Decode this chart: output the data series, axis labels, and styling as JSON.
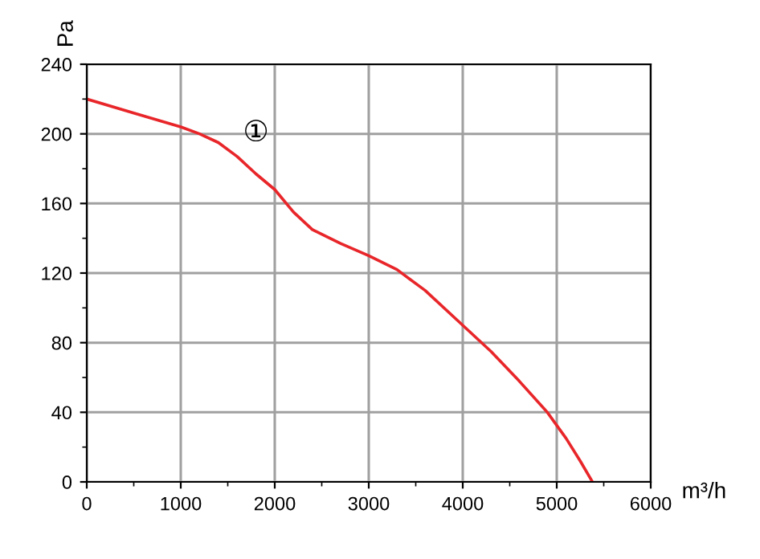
{
  "chart_data": {
    "type": "line",
    "xlabel": "m³/h",
    "ylabel": "Pa",
    "xlim": [
      0,
      6000
    ],
    "ylim": [
      0,
      240
    ],
    "xticks": [
      0,
      {
        "value": 500,
        "label": null
      },
      1000,
      {
        "value": 1500,
        "label": null
      },
      2000,
      {
        "value": 2500,
        "label": null
      },
      3000,
      {
        "value": 3500,
        "label": null
      },
      4000,
      {
        "value": 4500,
        "label": null
      },
      5000,
      {
        "value": 5500,
        "label": null
      },
      6000
    ],
    "yticks": [
      0,
      {
        "value": 20,
        "label": null
      },
      40,
      {
        "value": 60,
        "label": null
      },
      80,
      {
        "value": 100,
        "label": null
      },
      120,
      {
        "value": 140,
        "label": null
      },
      160,
      {
        "value": 180,
        "label": null
      },
      200,
      {
        "value": 220,
        "label": null
      },
      240
    ],
    "grid": true,
    "marker": "none",
    "line_style": "solid",
    "annotations": [
      "①"
    ],
    "series": [
      {
        "color": "#e8262a",
        "x": [
          0,
          500,
          1000,
          1200,
          1400,
          1600,
          1800,
          2000,
          2200,
          2400,
          2700,
          3000,
          3300,
          3600,
          4000,
          4300,
          4600,
          4900,
          5100,
          5250,
          5380
        ],
        "values": [
          220,
          212,
          204,
          200,
          195,
          187,
          177,
          168,
          155,
          145,
          137,
          130,
          122,
          110,
          90,
          75,
          58,
          40,
          25,
          12,
          0
        ]
      }
    ]
  }
}
